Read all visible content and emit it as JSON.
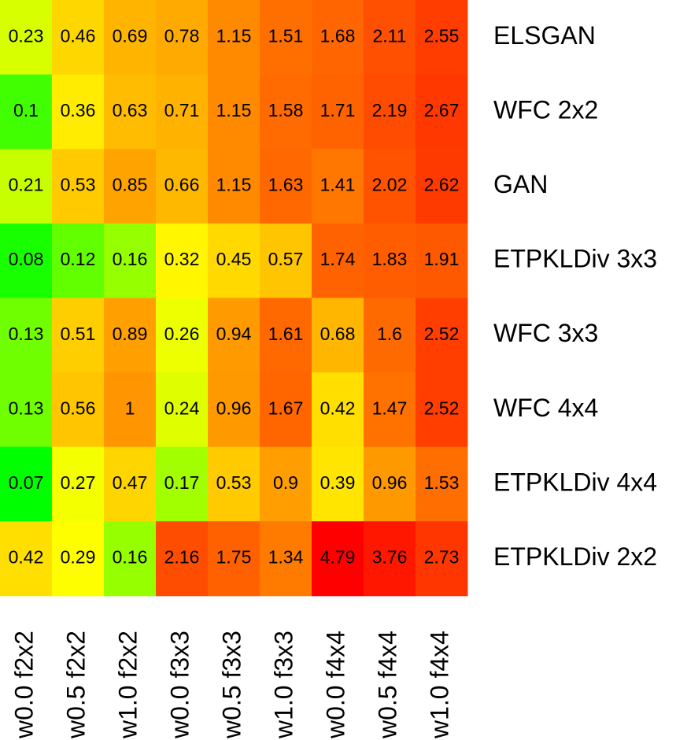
{
  "chart_data": {
    "type": "heatmap",
    "x": [
      "w0.0 f2x2",
      "w0.5 f2x2",
      "w1.0 f2x2",
      "w0.0 f3x3",
      "w0.5 f3x3",
      "w1.0 f3x3",
      "w0.0 f4x4",
      "w0.5 f4x4",
      "w1.0 f4x4"
    ],
    "y": [
      "ELSGAN",
      "WFC 2x2",
      "GAN",
      "ETPKLDiv 3x3",
      "WFC 3x3",
      "WFC 4x4",
      "ETPKLDiv 4x4",
      "ETPKLDiv 2x2"
    ],
    "values": [
      [
        0.23,
        0.46,
        0.69,
        0.78,
        1.15,
        1.51,
        1.68,
        2.11,
        2.55
      ],
      [
        0.1,
        0.36,
        0.63,
        0.71,
        1.15,
        1.58,
        1.71,
        2.19,
        2.67
      ],
      [
        0.21,
        0.53,
        0.85,
        0.66,
        1.15,
        1.63,
        1.41,
        2.02,
        2.62
      ],
      [
        0.08,
        0.12,
        0.16,
        0.32,
        0.45,
        0.57,
        1.74,
        1.83,
        1.91
      ],
      [
        0.13,
        0.51,
        0.89,
        0.26,
        0.94,
        1.61,
        0.68,
        1.6,
        2.52
      ],
      [
        0.13,
        0.56,
        1,
        0.24,
        0.96,
        1.67,
        0.42,
        1.47,
        2.52
      ],
      [
        0.07,
        0.27,
        0.47,
        0.17,
        0.53,
        0.9,
        0.39,
        0.96,
        1.53
      ],
      [
        0.42,
        0.29,
        0.16,
        2.16,
        1.75,
        1.34,
        4.79,
        3.76,
        2.73
      ]
    ],
    "color_scale": [
      "#00ff00",
      "#ffff00",
      "#ff8800",
      "#ff0000"
    ],
    "log_color": true
  }
}
